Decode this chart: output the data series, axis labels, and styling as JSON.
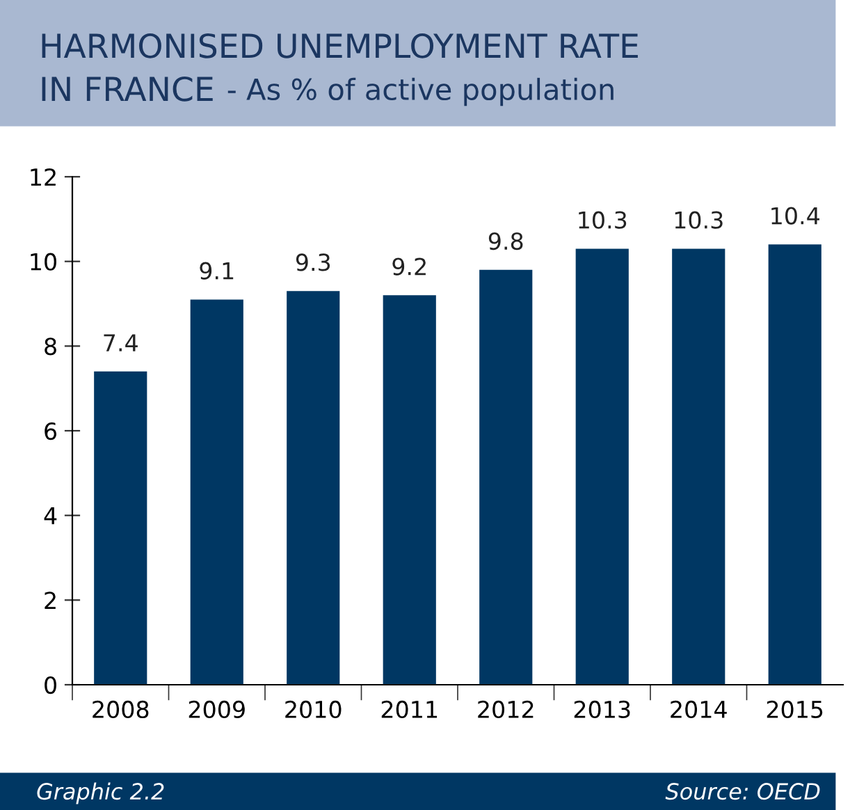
{
  "chart_data": {
    "type": "bar",
    "title": "HARMONISED UNEMPLOYMENT RATE\nIN FRANCE",
    "subtitle": "- As % of active population",
    "categories": [
      "2008",
      "2009",
      "2010",
      "2011",
      "2012",
      "2013",
      "2014",
      "2015"
    ],
    "values": [
      7.4,
      9.1,
      9.3,
      9.2,
      9.8,
      10.3,
      10.3,
      10.4
    ],
    "color": "#003763",
    "ylim": [
      0,
      12
    ],
    "yticks": [
      0,
      2,
      4,
      6,
      8,
      10,
      12
    ],
    "grid": false,
    "data_labels": true,
    "annotations": [
      "Graphic 2.2",
      "Source: OECD"
    ]
  }
}
